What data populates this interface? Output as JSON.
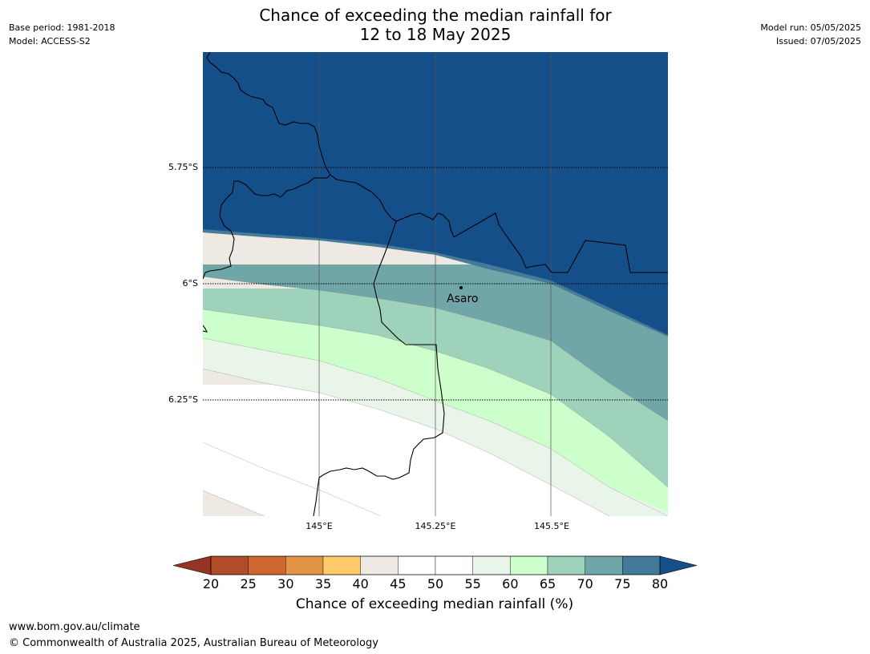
{
  "title": {
    "line1": "Chance of exceeding the median rainfall for",
    "line2": "12 to 18 May 2025"
  },
  "meta_left": {
    "base_period": "Base period: 1981-2018",
    "model": "Model: ACCESS-S2"
  },
  "meta_right": {
    "model_run": "Model run: 05/05/2025",
    "issued": "Issued: 07/05/2025"
  },
  "map": {
    "lat_labels": [
      "5.75°S",
      "6°S",
      "6.25°S"
    ],
    "lon_labels": [
      "145°E",
      "145.25°E",
      "145.5°E"
    ],
    "town": "Asaro"
  },
  "colorbar": {
    "title": "Chance of exceeding median rainfall (%)",
    "ticks": [
      "20",
      "25",
      "30",
      "35",
      "40",
      "45",
      "50",
      "55",
      "60",
      "65",
      "70",
      "75",
      "80"
    ],
    "colors": [
      "#b04c28",
      "#cf6631",
      "#e39545",
      "#fdcb6a",
      "#eee9e3",
      "#ffffff",
      "#ffffff",
      "#eaf5ea",
      "#ccffcc",
      "#9ed2bb",
      "#70a6a8",
      "#437a99"
    ],
    "under_color": "#953424",
    "over_color": "#154f8a"
  },
  "footer": {
    "url": "www.bom.gov.au/climate",
    "copyright": "© Commonwealth of Australia 2025, Australian Bureau of Meteorology"
  }
}
